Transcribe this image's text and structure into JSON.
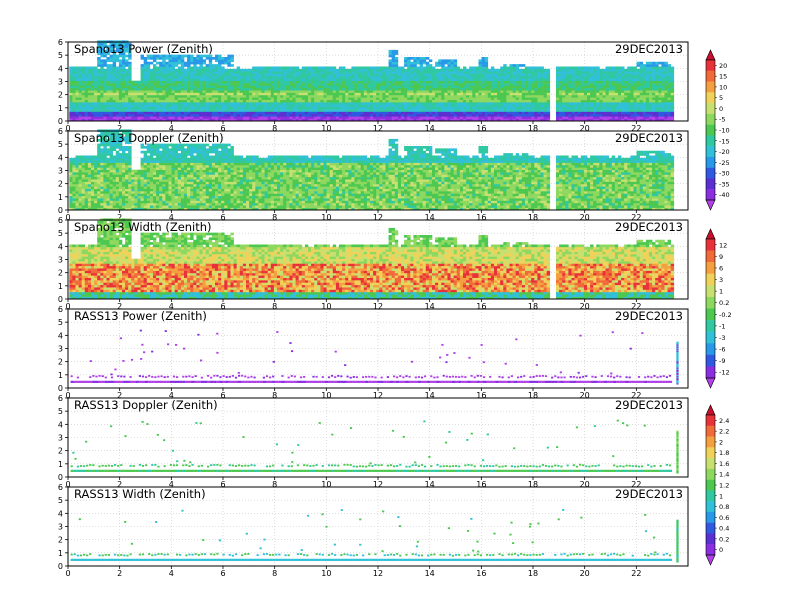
{
  "date_label": "29DEC2013",
  "chart_data": [
    {
      "type": "heatmap",
      "title": "Spano13 Power (Zenith)",
      "date": "29DEC2013",
      "xlim": [
        0,
        24
      ],
      "xticks": [
        0,
        2,
        4,
        6,
        8,
        10,
        12,
        14,
        16,
        18,
        20,
        22
      ],
      "ylim": [
        0,
        6
      ],
      "yticks": [
        0,
        1,
        2,
        3,
        4,
        5,
        6
      ],
      "grid": "dotted",
      "pattern": "spano_power",
      "colorbar": "power"
    },
    {
      "type": "heatmap",
      "title": "Spano13 Doppler (Zenith)",
      "date": "29DEC2013",
      "xlim": [
        0,
        24
      ],
      "xticks": [
        0,
        2,
        4,
        6,
        8,
        10,
        12,
        14,
        16,
        18,
        20,
        22
      ],
      "ylim": [
        0,
        6
      ],
      "yticks": [
        0,
        1,
        2,
        3,
        4,
        5,
        6
      ],
      "grid": "dotted",
      "pattern": "spano_doppler",
      "colorbar": "power"
    },
    {
      "type": "heatmap",
      "title": "Spano13 Width (Zenith)",
      "date": "29DEC2013",
      "xlim": [
        0,
        24
      ],
      "xticks": [
        0,
        2,
        4,
        6,
        8,
        10,
        12,
        14,
        16,
        18,
        20,
        22
      ],
      "ylim": [
        0,
        6
      ],
      "yticks": [
        0,
        1,
        2,
        3,
        4,
        5,
        6
      ],
      "grid": "dotted",
      "pattern": "spano_width",
      "colorbar": "width"
    },
    {
      "type": "heatmap",
      "title": "RASS13 Power (Zenith)",
      "date": "29DEC2013",
      "xlim": [
        0,
        24
      ],
      "xticks": [
        0,
        2,
        4,
        6,
        8,
        10,
        12,
        14,
        16,
        18,
        20,
        22
      ],
      "ylim": [
        0,
        6
      ],
      "yticks": [
        0,
        1,
        2,
        3,
        4,
        5,
        6
      ],
      "grid": "dotted",
      "pattern": "rass_power",
      "colorbar": "width"
    },
    {
      "type": "heatmap",
      "title": "RASS13 Doppler (Zenith)",
      "date": "29DEC2013",
      "xlim": [
        0,
        24
      ],
      "xticks": [
        0,
        2,
        4,
        6,
        8,
        10,
        12,
        14,
        16,
        18,
        20,
        22
      ],
      "ylim": [
        0,
        6
      ],
      "yticks": [
        0,
        1,
        2,
        3,
        4,
        5,
        6
      ],
      "grid": "dotted",
      "pattern": "rass_doppler",
      "colorbar": "rass"
    },
    {
      "type": "heatmap",
      "title": "RASS13 Width (Zenith)",
      "date": "29DEC2013",
      "xlim": [
        0,
        24
      ],
      "xticks": [
        0,
        2,
        4,
        6,
        8,
        10,
        12,
        14,
        16,
        18,
        20,
        22
      ],
      "ylim": [
        0,
        6
      ],
      "yticks": [
        0,
        1,
        2,
        3,
        4,
        5,
        6
      ],
      "grid": "dotted",
      "pattern": "rass_width",
      "colorbar": "rass"
    }
  ],
  "colorbars": {
    "power": {
      "labels": [
        "20",
        "15",
        "10",
        "5",
        "0",
        "-5",
        "-10",
        "-15",
        "-20",
        "-25",
        "-30",
        "-35",
        "-40"
      ],
      "colors": [
        "#c8102e",
        "#e8323a",
        "#f06a3a",
        "#f5a040",
        "#f0d25a",
        "#c8e070",
        "#8ed860",
        "#4cc850",
        "#30c8a0",
        "#30c0d8",
        "#2898e8",
        "#3058e0",
        "#5a30d0",
        "#8a2ee0",
        "#b040e8"
      ]
    },
    "width": {
      "labels": [
        "12",
        "9",
        "6",
        "3",
        "1",
        "0.2",
        "-0.2",
        "-1",
        "-3",
        "-6",
        "-9",
        "-12"
      ],
      "colors": [
        "#c8102e",
        "#e8323a",
        "#f06a3a",
        "#f5a040",
        "#f0d25a",
        "#c8e070",
        "#8ed860",
        "#4cc850",
        "#30c8a0",
        "#30c0d8",
        "#2898e8",
        "#3058e0",
        "#8a2ee0",
        "#b040e8"
      ]
    },
    "rass": {
      "labels": [
        "2.4",
        "2.2",
        "2",
        "1.8",
        "1.6",
        "1.4",
        "1.2",
        "1",
        "0.8",
        "0.6",
        "0.4",
        "0.2",
        "0"
      ],
      "colors": [
        "#c8102e",
        "#e8323a",
        "#f06a3a",
        "#f5a040",
        "#f0d25a",
        "#c8e070",
        "#8ed860",
        "#4cc850",
        "#30c8a0",
        "#30c0d8",
        "#2898e8",
        "#3058e0",
        "#5a30d0",
        "#8a2ee0",
        "#b040e8"
      ]
    }
  }
}
